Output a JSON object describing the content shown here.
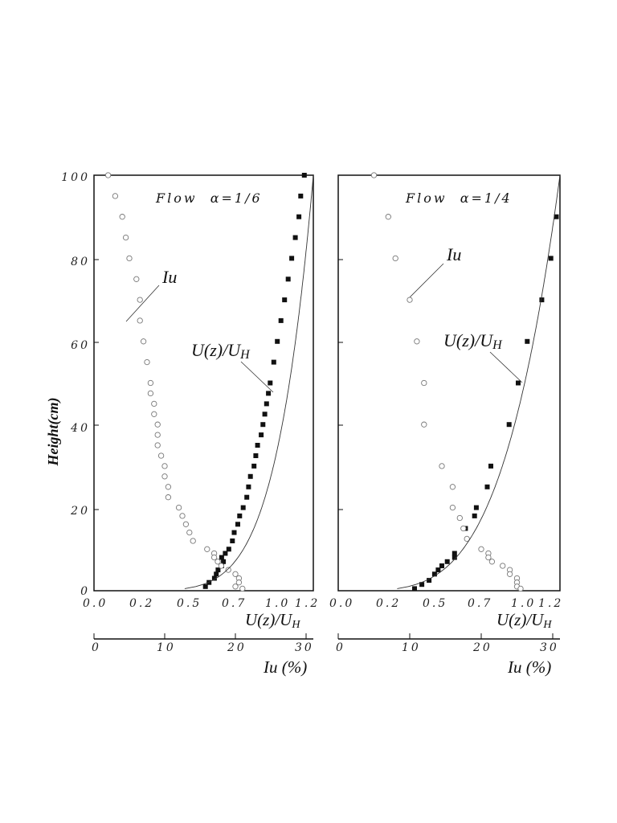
{
  "chart_data": [
    {
      "type": "scatter",
      "title": "Flow  α=1/6",
      "ylabel": "Height(cm)",
      "xlabel": "U(z)/U",
      "xlabel_sub": "H",
      "xlabel2": "Iu (%)",
      "ylim": [
        0,
        100
      ],
      "xlim": [
        0,
        1.22
      ],
      "xlim2": [
        0,
        31
      ],
      "yticks": [
        "0",
        "20",
        "40",
        "60",
        "80",
        "100"
      ],
      "xticks": [
        "0.0",
        "0.2",
        "0.5",
        "0.7",
        "1.0",
        "1.2"
      ],
      "xticks2": [
        "0",
        "10",
        "20",
        "30"
      ],
      "annotation_iu": "Iu",
      "annotation_u": "U(z)/U",
      "annotation_u_sub": "H",
      "series": [
        {
          "name": "U(z)/UH",
          "marker": "filled-square",
          "points": [
            [
              0.62,
              1
            ],
            [
              0.64,
              2
            ],
            [
              0.67,
              3
            ],
            [
              0.68,
              4
            ],
            [
              0.69,
              5
            ],
            [
              0.71,
              6
            ],
            [
              0.72,
              7
            ],
            [
              0.71,
              8
            ],
            [
              0.73,
              9
            ],
            [
              0.75,
              10
            ],
            [
              0.77,
              12
            ],
            [
              0.78,
              14
            ],
            [
              0.8,
              16
            ],
            [
              0.81,
              18
            ],
            [
              0.83,
              20
            ],
            [
              0.85,
              22.5
            ],
            [
              0.86,
              25
            ],
            [
              0.87,
              27.5
            ],
            [
              0.89,
              30
            ],
            [
              0.9,
              32.5
            ],
            [
              0.91,
              35
            ],
            [
              0.93,
              37.5
            ],
            [
              0.94,
              40
            ],
            [
              0.95,
              42.5
            ],
            [
              0.96,
              45
            ],
            [
              0.97,
              47.5
            ],
            [
              0.98,
              50
            ],
            [
              1.0,
              55
            ],
            [
              1.02,
              60
            ],
            [
              1.04,
              65
            ],
            [
              1.06,
              70
            ],
            [
              1.08,
              75
            ],
            [
              1.1,
              80
            ],
            [
              1.12,
              85
            ],
            [
              1.14,
              90
            ],
            [
              1.15,
              95
            ],
            [
              1.17,
              100
            ]
          ]
        },
        {
          "name": "Iu",
          "marker": "open-circle",
          "points": [
            [
              2,
              100
            ],
            [
              3,
              95
            ],
            [
              4,
              90
            ],
            [
              4.5,
              85
            ],
            [
              5,
              80
            ],
            [
              6,
              75
            ],
            [
              6.5,
              70
            ],
            [
              6.5,
              65
            ],
            [
              7,
              60
            ],
            [
              7.5,
              55
            ],
            [
              8,
              50
            ],
            [
              8,
              47.5
            ],
            [
              8.5,
              45
            ],
            [
              8.5,
              42.5
            ],
            [
              9,
              40
            ],
            [
              9,
              37.5
            ],
            [
              9,
              35
            ],
            [
              9.5,
              32.5
            ],
            [
              10,
              30
            ],
            [
              10,
              27.5
            ],
            [
              10.5,
              25
            ],
            [
              10.5,
              22.5
            ],
            [
              12,
              20
            ],
            [
              12.5,
              18
            ],
            [
              13,
              16
            ],
            [
              13.5,
              14
            ],
            [
              14,
              12
            ],
            [
              16,
              10
            ],
            [
              17,
              9
            ],
            [
              17,
              8
            ],
            [
              17.5,
              7
            ],
            [
              18,
              6
            ],
            [
              19,
              5
            ],
            [
              20,
              4
            ],
            [
              20.5,
              3
            ],
            [
              20.5,
              2
            ],
            [
              20,
              1
            ],
            [
              21,
              0.5
            ]
          ]
        },
        {
          "name": "power-law fit",
          "marker": "line",
          "alpha": 0.1667,
          "x_at_top": 1.22,
          "z_start": 0.5
        }
      ]
    },
    {
      "type": "scatter",
      "title": "Flow  α=1/4",
      "xlabel": "U(z)/U",
      "xlabel_sub": "H",
      "xlabel2": "Iu (%)",
      "ylim": [
        0,
        100
      ],
      "xlim": [
        0,
        1.22
      ],
      "xlim2": [
        0,
        31
      ],
      "xticks": [
        "0.0",
        "0.2",
        "0.5",
        "0.7",
        "1.0",
        "1.2"
      ],
      "xticks2": [
        "0",
        "10",
        "20",
        "30"
      ],
      "annotation_iu": "Iu",
      "annotation_u": "U(z)/U",
      "annotation_u_sub": "H",
      "series": [
        {
          "name": "U(z)/UH",
          "marker": "filled-square",
          "points": [
            [
              0.42,
              0.5
            ],
            [
              0.46,
              1.5
            ],
            [
              0.5,
              2.5
            ],
            [
              0.53,
              4
            ],
            [
              0.55,
              5
            ],
            [
              0.57,
              6
            ],
            [
              0.6,
              7
            ],
            [
              0.64,
              8
            ],
            [
              0.64,
              9
            ],
            [
              0.7,
              15
            ],
            [
              0.75,
              18
            ],
            [
              0.76,
              20
            ],
            [
              0.82,
              25
            ],
            [
              0.84,
              30
            ],
            [
              0.94,
              40
            ],
            [
              0.99,
              50
            ],
            [
              1.04,
              60
            ],
            [
              1.12,
              70
            ],
            [
              1.17,
              80
            ],
            [
              1.2,
              90
            ]
          ]
        },
        {
          "name": "Iu",
          "marker": "open-circle",
          "points": [
            [
              5,
              100
            ],
            [
              7,
              90
            ],
            [
              8,
              80
            ],
            [
              10,
              70
            ],
            [
              11,
              60
            ],
            [
              12,
              50
            ],
            [
              12,
              40
            ],
            [
              14.5,
              30
            ],
            [
              16,
              25
            ],
            [
              16,
              20
            ],
            [
              17,
              17.5
            ],
            [
              17.5,
              15
            ],
            [
              18,
              12.5
            ],
            [
              20,
              10
            ],
            [
              21,
              9
            ],
            [
              21,
              8
            ],
            [
              21.5,
              7
            ],
            [
              23,
              6
            ],
            [
              24,
              5
            ],
            [
              24,
              4
            ],
            [
              25,
              3
            ],
            [
              25,
              2
            ],
            [
              25,
              1
            ],
            [
              25.5,
              0.5
            ]
          ]
        },
        {
          "name": "power-law fit",
          "marker": "line",
          "alpha": 0.25,
          "x_at_top": 1.22,
          "z_start": 0.5
        }
      ]
    }
  ]
}
